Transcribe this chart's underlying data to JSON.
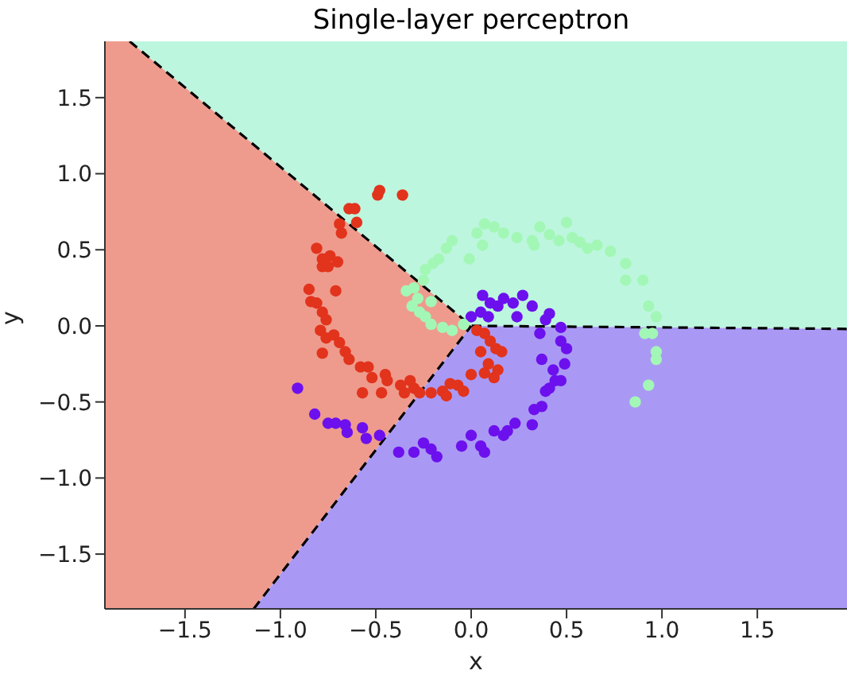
{
  "chart_data": {
    "type": "scatter",
    "title": "Single-layer perceptron",
    "xlabel": "x",
    "ylabel": "y",
    "xlim": [
      -1.92,
      1.97
    ],
    "ylim": [
      -1.86,
      1.87
    ],
    "marker": "circle",
    "xticks": [
      {
        "value": -1.5,
        "label": "−1.5"
      },
      {
        "value": -1,
        "label": "−1.0"
      },
      {
        "value": -0.5,
        "label": "−0.5"
      },
      {
        "value": 0,
        "label": "0.0"
      },
      {
        "value": 0.5,
        "label": "0.5"
      },
      {
        "value": 1,
        "label": "1.0"
      },
      {
        "value": 1.5,
        "label": "1.5"
      }
    ],
    "yticks": [
      {
        "value": -1.5,
        "label": "−1.5"
      },
      {
        "value": -1,
        "label": "−1.0"
      },
      {
        "value": -0.5,
        "label": "−0.5"
      },
      {
        "value": 0,
        "label": "0.0"
      },
      {
        "value": 0.5,
        "label": "0.5"
      },
      {
        "value": 1,
        "label": "1.0"
      },
      {
        "value": 1.5,
        "label": "1.5"
      }
    ],
    "series": [
      {
        "type": "line",
        "color": "#000000",
        "line_style": "dashed",
        "marker": "none",
        "x": [
          -1.79,
          0,
          1.97
        ],
        "values": [
          1.87,
          0,
          -0.02
        ]
      },
      {
        "type": "line",
        "color": "#000000",
        "line_style": "dashed",
        "marker": "none",
        "x": [
          -1.14,
          0
        ],
        "values": [
          -1.86,
          0
        ]
      },
      {
        "color": "#e2331c",
        "x": [
          -0.49,
          -0.48,
          -0.36,
          -0.64,
          -0.61,
          -0.6,
          -0.69,
          -0.68,
          -0.81,
          -0.74,
          -0.78,
          -0.78,
          -0.75,
          -0.7,
          -0.85,
          -0.71,
          -0.84,
          -0.81,
          -0.78,
          -0.76,
          -0.79,
          -0.76,
          -0.72,
          -0.69,
          -0.78,
          -0.66,
          -0.64,
          -0.58,
          -0.54,
          -0.52,
          -0.45,
          -0.44,
          -0.37,
          -0.32,
          -0.3,
          -0.35,
          -0.27,
          -0.57,
          -0.47,
          -0.21,
          -0.15,
          -0.11,
          -0.07,
          -0.04,
          -0.13,
          0.0,
          0.05,
          0.03,
          0.07,
          0.1,
          0.13,
          0.16,
          0.09,
          0.07,
          0.12,
          0.14
        ],
        "values": [
          0.86,
          0.89,
          0.86,
          0.77,
          0.77,
          0.68,
          0.67,
          0.61,
          0.51,
          0.46,
          0.44,
          0.39,
          0.39,
          0.42,
          0.24,
          0.23,
          0.16,
          0.15,
          0.09,
          0.04,
          -0.03,
          -0.08,
          -0.06,
          -0.11,
          -0.18,
          -0.17,
          -0.22,
          -0.27,
          -0.27,
          -0.34,
          -0.32,
          -0.36,
          -0.39,
          -0.36,
          -0.41,
          -0.44,
          -0.44,
          -0.44,
          -0.44,
          -0.44,
          -0.43,
          -0.38,
          -0.39,
          -0.43,
          -0.46,
          -0.32,
          -0.17,
          -0.03,
          -0.05,
          -0.1,
          -0.15,
          -0.17,
          -0.25,
          -0.31,
          -0.34,
          -0.29
        ]
      },
      {
        "color": "#6c10ee",
        "x": [
          -0.91,
          -0.82,
          -0.75,
          -0.71,
          -0.66,
          -0.65,
          -0.57,
          -0.55,
          -0.48,
          -0.38,
          -0.3,
          -0.25,
          -0.21,
          -0.18,
          -0.05,
          0.0,
          0.05,
          0.07,
          0.12,
          0.17,
          0.19,
          0.23,
          0.32,
          0.33,
          0.37,
          0.39,
          0.41,
          0.44,
          0.43,
          0.47,
          0.49,
          0.37,
          0.5,
          0.47,
          0.36,
          0.47,
          0.41,
          0.39,
          0.32,
          0.27,
          0.24,
          0.22,
          0.17,
          0.14,
          0.1,
          0.06,
          0.05,
          0.0,
          0.09
        ],
        "values": [
          -0.41,
          -0.58,
          -0.64,
          -0.64,
          -0.65,
          -0.7,
          -0.67,
          -0.74,
          -0.72,
          -0.83,
          -0.83,
          -0.77,
          -0.81,
          -0.86,
          -0.79,
          -0.72,
          -0.79,
          -0.83,
          -0.69,
          -0.72,
          -0.69,
          -0.64,
          -0.65,
          -0.55,
          -0.53,
          -0.43,
          -0.41,
          -0.36,
          -0.29,
          -0.36,
          -0.25,
          -0.22,
          -0.15,
          -0.1,
          -0.05,
          -0.01,
          0.08,
          0.04,
          0.13,
          0.2,
          0.06,
          0.15,
          0.18,
          0.13,
          0.15,
          0.2,
          0.09,
          0.06,
          0.06
        ]
      },
      {
        "color": "#a3f7b6",
        "x": [
          -0.34,
          -0.3,
          -0.28,
          -0.31,
          -0.27,
          -0.24,
          -0.21,
          -0.15,
          -0.1,
          -0.04,
          -0.21,
          -0.25,
          -0.24,
          -0.2,
          -0.17,
          -0.13,
          -0.1,
          -0.01,
          0.03,
          0.07,
          0.12,
          0.06,
          0.17,
          0.24,
          0.32,
          0.36,
          0.33,
          0.41,
          0.46,
          0.5,
          0.53,
          0.57,
          0.61,
          0.66,
          0.73,
          0.81,
          0.81,
          0.9,
          0.93,
          0.97,
          0.91,
          0.95,
          0.97,
          0.97,
          0.93,
          0.86
        ],
        "values": [
          0.23,
          0.25,
          0.18,
          0.13,
          0.09,
          0.06,
          0.01,
          -0.01,
          -0.03,
          0.01,
          0.16,
          0.3,
          0.37,
          0.41,
          0.44,
          0.51,
          0.56,
          0.44,
          0.61,
          0.67,
          0.65,
          0.53,
          0.61,
          0.58,
          0.56,
          0.65,
          0.53,
          0.6,
          0.56,
          0.68,
          0.58,
          0.55,
          0.51,
          0.53,
          0.49,
          0.41,
          0.3,
          0.3,
          0.13,
          0.06,
          -0.05,
          -0.05,
          -0.17,
          -0.22,
          -0.39,
          -0.5
        ]
      }
    ]
  }
}
